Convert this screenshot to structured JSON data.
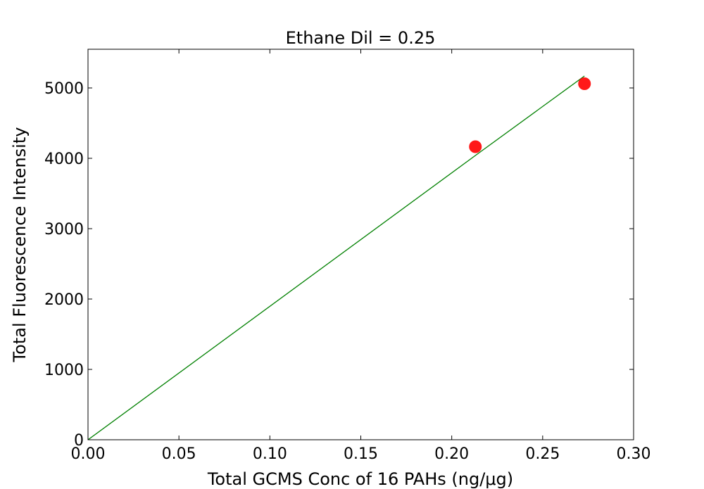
{
  "chart_data": {
    "type": "scatter",
    "title": "Ethane Dil = 0.25",
    "xlabel": "Total GCMS Conc of 16 PAHs (ng/μg)",
    "ylabel": "Total Fluorescence Intensity",
    "xlim": [
      0.0,
      0.3
    ],
    "ylim": [
      0,
      5550
    ],
    "x_ticks": [
      0.0,
      0.05,
      0.1,
      0.15,
      0.2,
      0.25,
      0.3
    ],
    "x_tick_labels": [
      "0.00",
      "0.05",
      "0.10",
      "0.15",
      "0.20",
      "0.25",
      "0.30"
    ],
    "y_ticks": [
      0,
      1000,
      2000,
      3000,
      4000,
      5000
    ],
    "y_tick_labels": [
      "0",
      "1000",
      "2000",
      "3000",
      "4000",
      "5000"
    ],
    "grid": false,
    "series": [
      {
        "kind": "points",
        "color": "#ff0000",
        "x": [
          0.213,
          0.273
        ],
        "y": [
          4165,
          5060
        ]
      },
      {
        "kind": "line",
        "color": "#008000",
        "x": [
          0.0,
          0.213,
          0.273
        ],
        "y": [
          0,
          4040,
          5170
        ]
      }
    ]
  }
}
